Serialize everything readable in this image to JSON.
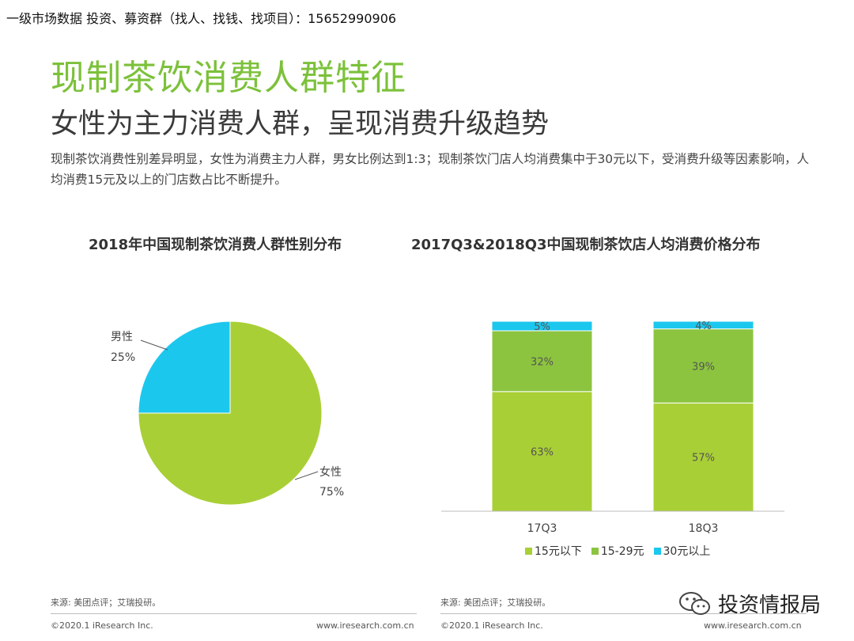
{
  "banner": "一级市场数据 投资、募资群（找人、找钱、找项目）：15652990906",
  "title": "现制茶饮消费人群特征",
  "subtitle": "女性为主力消费人群，呈现消费升级趋势",
  "summary": "现制茶饮消费性别差异明显，女性为消费主力人群，男女比例达到1:3；现制茶饮门店人均消费集中于30元以下，受消费升级等因素影响，人均消费15元及以上的门店数占比不断提升。",
  "colors": {
    "green": "#a9cf36",
    "mid_green": "#8cc43f",
    "cyan": "#1cc7ee",
    "title_green": "#7cc13a"
  },
  "chart_data": [
    {
      "type": "pie",
      "title": "2018年中国现制茶饮消费人群性别分布",
      "slices": [
        {
          "label": "男性",
          "value": 25,
          "value_label": "25%",
          "color": "#1cc7ee"
        },
        {
          "label": "女性",
          "value": 75,
          "value_label": "75%",
          "color": "#a9cf36"
        }
      ]
    },
    {
      "type": "bar",
      "stacked": true,
      "title": "2017Q3&2018Q3中国现制茶饮店人均消费价格分布",
      "categories": [
        "17Q3",
        "18Q3"
      ],
      "series": [
        {
          "name": "15元以下",
          "values": [
            63,
            57
          ],
          "labels": [
            "63%",
            "57%"
          ],
          "color": "#a9cf36"
        },
        {
          "name": "15-29元",
          "values": [
            32,
            39
          ],
          "labels": [
            "32%",
            "39%"
          ],
          "color": "#8cc43f"
        },
        {
          "name": "30元以上",
          "values": [
            5,
            4
          ],
          "labels": [
            "5%",
            "4%"
          ],
          "color": "#1cc7ee"
        }
      ],
      "ylim": [
        0,
        100
      ],
      "legend_position": "bottom"
    }
  ],
  "footer": {
    "left_source": "来源: 美团点评；艾瑞投研。",
    "right_source": "来源: 美团点评；艾瑞投研。",
    "copyright_left": "©2020.1 iResearch Inc.",
    "url_left": "www.iresearch.com.cn",
    "copyright_right": "©2020.1 iResearch Inc.",
    "url_right": "www.iresearch.com.cn"
  },
  "watermark": {
    "text": "投资情报局",
    "icon": "wechat-icon"
  }
}
